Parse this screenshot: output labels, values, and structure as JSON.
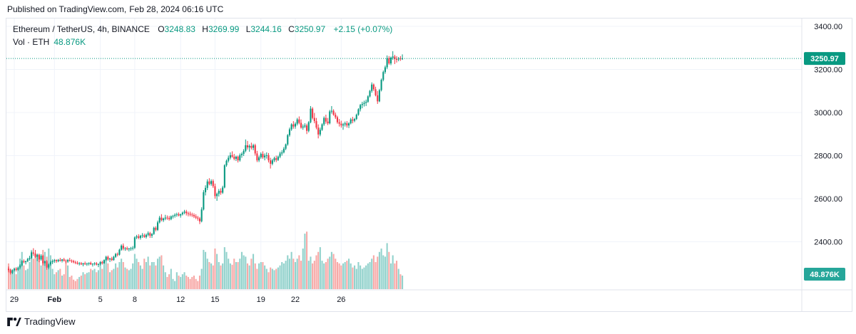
{
  "header": {
    "publisher": "Published on TradingView.com,",
    "date": "Feb 28, 2024 06:16 UTC"
  },
  "legend": {
    "symbol": "Ethereum / TetherUS, 4h, BINANCE",
    "open_label": "O",
    "open": "3248.83",
    "high_label": "H",
    "high": "3269.99",
    "low_label": "L",
    "low": "3244.16",
    "close_label": "C",
    "close": "3250.97",
    "change": "+2.15 (+0.07%)",
    "vol_label": "Vol · ETH",
    "vol_value": "48.876K"
  },
  "footer": {
    "brand": "TradingView"
  },
  "colors": {
    "up": "#089981",
    "down": "#f23645",
    "up_vol": "#92d2cc",
    "down_vol": "#f7a9a7",
    "grid": "#f0f3fa",
    "border": "#e0e3eb"
  },
  "chart_data": {
    "type": "candlestick",
    "timeframe": "4h",
    "yaxis_ticks": [
      2400,
      2600,
      2800,
      3000,
      3200,
      3400
    ],
    "yaxis_tick_labels": [
      "2400.00",
      "2600.00",
      "2800.00",
      "3000.00",
      "3200.00",
      "3400.00"
    ],
    "ylim": [
      2180,
      3420
    ],
    "xaxis_ticks": [
      {
        "label": "29",
        "index": 3
      },
      {
        "label": "Feb",
        "index": 24
      },
      {
        "label": "5",
        "index": 48
      },
      {
        "label": "8",
        "index": 66
      },
      {
        "label": "12",
        "index": 90
      },
      {
        "label": "15",
        "index": 108
      },
      {
        "label": "19",
        "index": 132
      },
      {
        "label": "22",
        "index": 150
      },
      {
        "label": "26",
        "index": 174
      }
    ],
    "last_price": 3250.97,
    "last_price_label": "3250.97",
    "last_volume_label": "48.876K",
    "candles": [
      [
        2275,
        2285,
        2258,
        2268,
        38
      ],
      [
        2268,
        2275,
        2248,
        2255,
        30
      ],
      [
        2255,
        2272,
        2250,
        2268,
        25
      ],
      [
        2268,
        2280,
        2262,
        2275,
        28
      ],
      [
        2275,
        2282,
        2262,
        2270,
        22
      ],
      [
        2270,
        2285,
        2265,
        2280,
        30
      ],
      [
        2280,
        2296,
        2272,
        2290,
        45
      ],
      [
        2290,
        2315,
        2285,
        2310,
        55
      ],
      [
        2310,
        2318,
        2300,
        2305,
        35
      ],
      [
        2305,
        2312,
        2295,
        2310,
        28
      ],
      [
        2310,
        2325,
        2305,
        2320,
        30
      ],
      [
        2320,
        2335,
        2312,
        2325,
        40
      ],
      [
        2325,
        2355,
        2320,
        2350,
        58
      ],
      [
        2350,
        2370,
        2335,
        2345,
        45
      ],
      [
        2345,
        2362,
        2325,
        2330,
        48
      ],
      [
        2330,
        2345,
        2310,
        2340,
        50
      ],
      [
        2340,
        2345,
        2305,
        2318,
        48
      ],
      [
        2318,
        2342,
        2312,
        2335,
        35
      ],
      [
        2335,
        2340,
        2290,
        2300,
        58
      ],
      [
        2300,
        2312,
        2288,
        2310,
        55
      ],
      [
        2310,
        2315,
        2270,
        2280,
        48
      ],
      [
        2280,
        2300,
        2272,
        2295,
        60
      ],
      [
        2295,
        2312,
        2288,
        2305,
        50
      ],
      [
        2305,
        2318,
        2296,
        2310,
        30
      ],
      [
        2310,
        2320,
        2302,
        2315,
        22
      ],
      [
        2315,
        2318,
        2302,
        2310,
        25
      ],
      [
        2310,
        2320,
        2305,
        2316,
        28
      ],
      [
        2316,
        2325,
        2308,
        2312,
        30
      ],
      [
        2312,
        2320,
        2304,
        2318,
        20
      ],
      [
        2318,
        2325,
        2308,
        2312,
        22
      ],
      [
        2312,
        2318,
        2300,
        2308,
        40
      ],
      [
        2308,
        2320,
        2302,
        2315,
        35
      ],
      [
        2315,
        2325,
        2308,
        2312,
        18
      ],
      [
        2312,
        2318,
        2302,
        2310,
        20
      ],
      [
        2310,
        2316,
        2300,
        2305,
        14
      ],
      [
        2305,
        2312,
        2296,
        2302,
        12
      ],
      [
        2302,
        2310,
        2294,
        2298,
        15
      ],
      [
        2298,
        2306,
        2290,
        2300,
        18
      ],
      [
        2300,
        2306,
        2292,
        2295,
        20
      ],
      [
        2295,
        2302,
        2286,
        2300,
        25
      ],
      [
        2300,
        2308,
        2292,
        2296,
        22
      ],
      [
        2296,
        2303,
        2288,
        2298,
        24
      ],
      [
        2298,
        2304,
        2290,
        2302,
        25
      ],
      [
        2302,
        2308,
        2292,
        2295,
        30
      ],
      [
        2295,
        2300,
        2285,
        2298,
        28
      ],
      [
        2298,
        2305,
        2290,
        2300,
        30
      ],
      [
        2300,
        2306,
        2290,
        2294,
        25
      ],
      [
        2294,
        2300,
        2282,
        2296,
        28
      ],
      [
        2296,
        2310,
        2290,
        2306,
        40
      ],
      [
        2306,
        2312,
        2294,
        2300,
        30
      ],
      [
        2300,
        2318,
        2298,
        2315,
        42
      ],
      [
        2315,
        2335,
        2310,
        2330,
        45
      ],
      [
        2330,
        2336,
        2312,
        2318,
        38
      ],
      [
        2318,
        2325,
        2306,
        2322,
        25
      ],
      [
        2322,
        2330,
        2310,
        2315,
        28
      ],
      [
        2315,
        2335,
        2312,
        2330,
        30
      ],
      [
        2330,
        2348,
        2325,
        2343,
        38
      ],
      [
        2343,
        2350,
        2332,
        2340,
        32
      ],
      [
        2340,
        2368,
        2336,
        2363,
        40
      ],
      [
        2363,
        2388,
        2358,
        2382,
        45
      ],
      [
        2382,
        2392,
        2360,
        2368,
        40
      ],
      [
        2368,
        2375,
        2358,
        2370,
        32
      ],
      [
        2370,
        2378,
        2360,
        2365,
        30
      ],
      [
        2365,
        2372,
        2355,
        2368,
        28
      ],
      [
        2368,
        2376,
        2358,
        2370,
        30
      ],
      [
        2370,
        2380,
        2360,
        2372,
        38
      ],
      [
        2372,
        2425,
        2366,
        2420,
        52
      ],
      [
        2420,
        2432,
        2412,
        2425,
        45
      ],
      [
        2425,
        2435,
        2412,
        2418,
        40
      ],
      [
        2418,
        2432,
        2410,
        2428,
        35
      ],
      [
        2428,
        2440,
        2418,
        2430,
        30
      ],
      [
        2430,
        2438,
        2418,
        2422,
        45
      ],
      [
        2422,
        2438,
        2415,
        2432,
        40
      ],
      [
        2432,
        2448,
        2425,
        2440,
        48
      ],
      [
        2440,
        2446,
        2418,
        2428,
        35
      ],
      [
        2428,
        2440,
        2418,
        2436,
        40
      ],
      [
        2436,
        2470,
        2432,
        2465,
        40
      ],
      [
        2465,
        2472,
        2448,
        2455,
        35
      ],
      [
        2455,
        2498,
        2450,
        2490,
        45
      ],
      [
        2490,
        2520,
        2485,
        2512,
        48
      ],
      [
        2512,
        2528,
        2495,
        2500,
        50
      ],
      [
        2500,
        2512,
        2492,
        2508,
        35
      ],
      [
        2508,
        2525,
        2500,
        2512,
        25
      ],
      [
        2512,
        2522,
        2502,
        2510,
        18
      ],
      [
        2510,
        2520,
        2498,
        2505,
        22
      ],
      [
        2505,
        2522,
        2500,
        2518,
        30
      ],
      [
        2518,
        2525,
        2508,
        2520,
        15
      ],
      [
        2520,
        2532,
        2512,
        2525,
        12
      ],
      [
        2525,
        2535,
        2516,
        2528,
        25
      ],
      [
        2528,
        2536,
        2518,
        2522,
        20
      ],
      [
        2522,
        2530,
        2512,
        2528,
        18
      ],
      [
        2528,
        2540,
        2522,
        2535,
        22
      ],
      [
        2535,
        2548,
        2528,
        2540,
        25
      ],
      [
        2540,
        2548,
        2522,
        2532,
        20
      ],
      [
        2532,
        2540,
        2518,
        2530,
        18
      ],
      [
        2530,
        2540,
        2518,
        2526,
        15
      ],
      [
        2526,
        2535,
        2515,
        2524,
        18
      ],
      [
        2524,
        2532,
        2510,
        2518,
        20
      ],
      [
        2518,
        2528,
        2505,
        2512,
        15
      ],
      [
        2512,
        2520,
        2498,
        2508,
        12
      ],
      [
        2508,
        2515,
        2482,
        2495,
        20
      ],
      [
        2495,
        2560,
        2490,
        2550,
        30
      ],
      [
        2550,
        2640,
        2545,
        2630,
        58
      ],
      [
        2630,
        2662,
        2615,
        2650,
        55
      ],
      [
        2650,
        2690,
        2640,
        2680,
        45
      ],
      [
        2680,
        2695,
        2662,
        2668,
        40
      ],
      [
        2668,
        2690,
        2660,
        2682,
        38
      ],
      [
        2682,
        2690,
        2650,
        2658,
        35
      ],
      [
        2658,
        2670,
        2600,
        2612,
        60
      ],
      [
        2612,
        2628,
        2590,
        2622,
        52
      ],
      [
        2622,
        2645,
        2610,
        2636,
        40
      ],
      [
        2636,
        2648,
        2618,
        2628,
        35
      ],
      [
        2628,
        2660,
        2622,
        2652,
        38
      ],
      [
        2652,
        2760,
        2648,
        2755,
        62
      ],
      [
        2755,
        2782,
        2748,
        2776,
        55
      ],
      [
        2776,
        2800,
        2768,
        2790,
        45
      ],
      [
        2790,
        2815,
        2782,
        2802,
        38
      ],
      [
        2802,
        2820,
        2790,
        2795,
        36
      ],
      [
        2795,
        2808,
        2778,
        2785,
        45
      ],
      [
        2785,
        2800,
        2775,
        2795,
        40
      ],
      [
        2795,
        2800,
        2768,
        2778,
        40
      ],
      [
        2778,
        2810,
        2772,
        2802,
        45
      ],
      [
        2802,
        2815,
        2790,
        2808,
        55
      ],
      [
        2808,
        2830,
        2798,
        2822,
        50
      ],
      [
        2822,
        2875,
        2815,
        2848,
        48
      ],
      [
        2848,
        2868,
        2828,
        2838,
        38
      ],
      [
        2838,
        2852,
        2818,
        2845,
        35
      ],
      [
        2845,
        2860,
        2828,
        2836,
        45
      ],
      [
        2836,
        2855,
        2825,
        2848,
        52
      ],
      [
        2848,
        2855,
        2800,
        2810,
        38
      ],
      [
        2810,
        2822,
        2770,
        2778,
        30
      ],
      [
        2778,
        2800,
        2770,
        2792,
        38
      ],
      [
        2792,
        2815,
        2785,
        2808,
        40
      ],
      [
        2808,
        2820,
        2785,
        2792,
        40
      ],
      [
        2792,
        2810,
        2778,
        2800,
        35
      ],
      [
        2800,
        2815,
        2786,
        2802,
        30
      ],
      [
        2802,
        2812,
        2768,
        2778,
        25
      ],
      [
        2778,
        2790,
        2740,
        2762,
        32
      ],
      [
        2762,
        2785,
        2755,
        2778,
        30
      ],
      [
        2778,
        2795,
        2770,
        2788,
        28
      ],
      [
        2788,
        2800,
        2770,
        2780,
        30
      ],
      [
        2780,
        2800,
        2775,
        2795,
        32
      ],
      [
        2795,
        2818,
        2788,
        2810,
        35
      ],
      [
        2810,
        2825,
        2800,
        2815,
        40
      ],
      [
        2815,
        2840,
        2810,
        2832,
        38
      ],
      [
        2832,
        2856,
        2825,
        2852,
        42
      ],
      [
        2852,
        2900,
        2846,
        2895,
        50
      ],
      [
        2895,
        2930,
        2888,
        2922,
        45
      ],
      [
        2922,
        2950,
        2915,
        2945,
        55
      ],
      [
        2945,
        2960,
        2925,
        2935,
        45
      ],
      [
        2935,
        2955,
        2925,
        2948,
        40
      ],
      [
        2948,
        2975,
        2940,
        2968,
        45
      ],
      [
        2968,
        2982,
        2945,
        2952,
        50
      ],
      [
        2952,
        2968,
        2925,
        2930,
        42
      ],
      [
        2930,
        2945,
        2920,
        2935,
        60
      ],
      [
        2935,
        2950,
        2928,
        2940,
        82
      ],
      [
        2940,
        2948,
        2900,
        2915,
        85
      ],
      [
        2915,
        2960,
        2908,
        2955,
        42
      ],
      [
        2955,
        3030,
        2950,
        3018,
        48
      ],
      [
        3018,
        3025,
        2968,
        2975,
        38
      ],
      [
        2975,
        2998,
        2950,
        2960,
        42
      ],
      [
        2960,
        2975,
        2922,
        2930,
        50
      ],
      [
        2930,
        2945,
        2880,
        2898,
        55
      ],
      [
        2898,
        2930,
        2890,
        2920,
        62
      ],
      [
        2920,
        2950,
        2915,
        2945,
        42
      ],
      [
        2945,
        2982,
        2938,
        2975,
        38
      ],
      [
        2975,
        2990,
        2948,
        2958,
        40
      ],
      [
        2958,
        2975,
        2942,
        2950,
        45
      ],
      [
        2950,
        3012,
        2945,
        3005,
        48
      ],
      [
        3005,
        3030,
        2995,
        3008,
        55
      ],
      [
        3008,
        3015,
        2985,
        2990,
        52
      ],
      [
        2990,
        3000,
        2970,
        2978,
        45
      ],
      [
        2978,
        2985,
        2948,
        2955,
        40
      ],
      [
        2955,
        2970,
        2935,
        2948,
        38
      ],
      [
        2948,
        2962,
        2930,
        2940,
        35
      ],
      [
        2940,
        2952,
        2920,
        2945,
        38
      ],
      [
        2945,
        2958,
        2935,
        2950,
        40
      ],
      [
        2950,
        2960,
        2930,
        2940,
        42
      ],
      [
        2940,
        2955,
        2928,
        2950,
        45
      ],
      [
        2950,
        2975,
        2945,
        2968,
        38
      ],
      [
        2968,
        2980,
        2950,
        2962,
        32
      ],
      [
        2962,
        2975,
        2955,
        2970,
        35
      ],
      [
        2970,
        2995,
        2965,
        2990,
        30
      ],
      [
        2990,
        3020,
        2985,
        3015,
        40
      ],
      [
        3015,
        3040,
        3005,
        3035,
        35
      ],
      [
        3035,
        3050,
        3020,
        3040,
        30
      ],
      [
        3040,
        3055,
        3028,
        3045,
        32
      ],
      [
        3045,
        3060,
        3030,
        3050,
        35
      ],
      [
        3050,
        3080,
        3045,
        3075,
        38
      ],
      [
        3075,
        3105,
        3070,
        3100,
        40
      ],
      [
        3100,
        3140,
        3092,
        3130,
        45
      ],
      [
        3130,
        3135,
        3100,
        3108,
        50
      ],
      [
        3108,
        3120,
        3075,
        3080,
        40
      ],
      [
        3080,
        3100,
        3040,
        3052,
        48
      ],
      [
        3052,
        3110,
        3048,
        3104,
        55
      ],
      [
        3104,
        3158,
        3098,
        3152,
        60
      ],
      [
        3152,
        3195,
        3145,
        3188,
        50
      ],
      [
        3188,
        3218,
        3180,
        3210,
        48
      ],
      [
        3210,
        3265,
        3202,
        3252,
        68
      ],
      [
        3252,
        3262,
        3222,
        3228,
        55
      ],
      [
        3228,
        3260,
        3220,
        3255,
        38
      ],
      [
        3255,
        3285,
        3245,
        3260,
        50
      ],
      [
        3260,
        3268,
        3225,
        3248,
        38
      ],
      [
        3248,
        3262,
        3232,
        3246,
        42
      ],
      [
        3246,
        3258,
        3238,
        3252,
        30
      ],
      [
        3252,
        3262,
        3240,
        3248,
        22
      ],
      [
        3248.83,
        3269.99,
        3244.16,
        3250.97,
        20
      ]
    ]
  }
}
